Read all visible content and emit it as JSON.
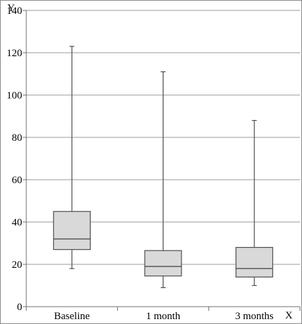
{
  "chart_data": {
    "type": "box",
    "title": "",
    "xlabel": "X",
    "ylabel": "Y",
    "ylim": [
      0,
      140
    ],
    "yticks": [
      0,
      20,
      40,
      60,
      80,
      100,
      120,
      140
    ],
    "grid": "horizontal",
    "categories": [
      "Baseline",
      "1 month",
      "3 months"
    ],
    "boxes": [
      {
        "category": "Baseline",
        "min": 18,
        "q1": 27,
        "median": 32,
        "q3": 45,
        "max": 123
      },
      {
        "category": "1 month",
        "min": 9,
        "q1": 14.5,
        "median": 19,
        "q3": 26.5,
        "max": 111
      },
      {
        "category": "3 months",
        "min": 10,
        "q1": 14,
        "median": 18,
        "q3": 28,
        "max": 88
      }
    ],
    "colors": {
      "box_fill": "#d9d9d9",
      "box_stroke": "#4d4d4d",
      "grid": "#9a9a9a",
      "axis": "#6e6e6e"
    }
  }
}
